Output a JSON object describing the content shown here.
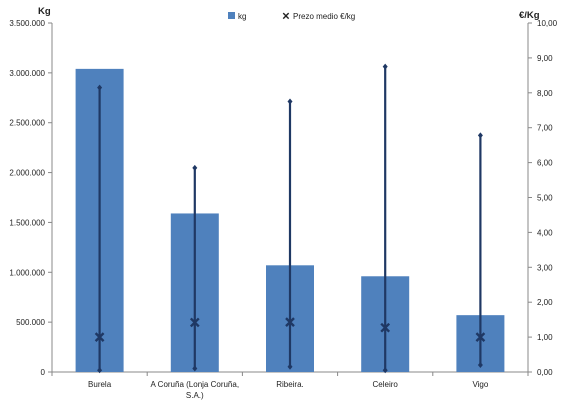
{
  "chart_data": {
    "type": "bar",
    "categories": [
      "Burela",
      "A Coruña (Lonja Coruña, S.A.)",
      "Ribeira.",
      "Celeiro",
      "Vigo"
    ],
    "category_lines": [
      [
        "Burela"
      ],
      [
        "A Coruña (Lonja Coruña,",
        "S.A.)"
      ],
      [
        "Ribeira."
      ],
      [
        "Celeiro"
      ],
      [
        "Vigo"
      ]
    ],
    "series": [
      {
        "name": "kg",
        "type": "bar",
        "axis": "left",
        "values": [
          3040000,
          1590000,
          1070000,
          960000,
          570000
        ]
      },
      {
        "name": "Prezo medio €/kg",
        "type": "marker",
        "axis": "right",
        "values": [
          1.0,
          1.42,
          1.43,
          1.27,
          1.0
        ],
        "high": [
          8.15,
          5.85,
          7.75,
          8.75,
          6.78
        ],
        "low": [
          0.05,
          0.1,
          0.15,
          0.05,
          0.2
        ]
      }
    ],
    "ylabel": "Kg",
    "y2label": "€/Kg",
    "ylim": [
      0,
      3500000
    ],
    "y2lim": [
      0,
      10
    ],
    "y_ticks": [
      "0",
      "500.000",
      "1.000.000",
      "1.500.000",
      "2.000.000",
      "2.500.000",
      "3.000.000",
      "3.500.000"
    ],
    "y2_ticks": [
      "0,00",
      "1,00",
      "2,00",
      "3,00",
      "4,00",
      "5,00",
      "6,00",
      "7,00",
      "8,00",
      "9,00",
      "10,00"
    ],
    "legend_position": "top-center",
    "grid": false,
    "colors": {
      "bar": "#4f81bd",
      "marker": "#1f3864",
      "axis": "#888888"
    }
  }
}
